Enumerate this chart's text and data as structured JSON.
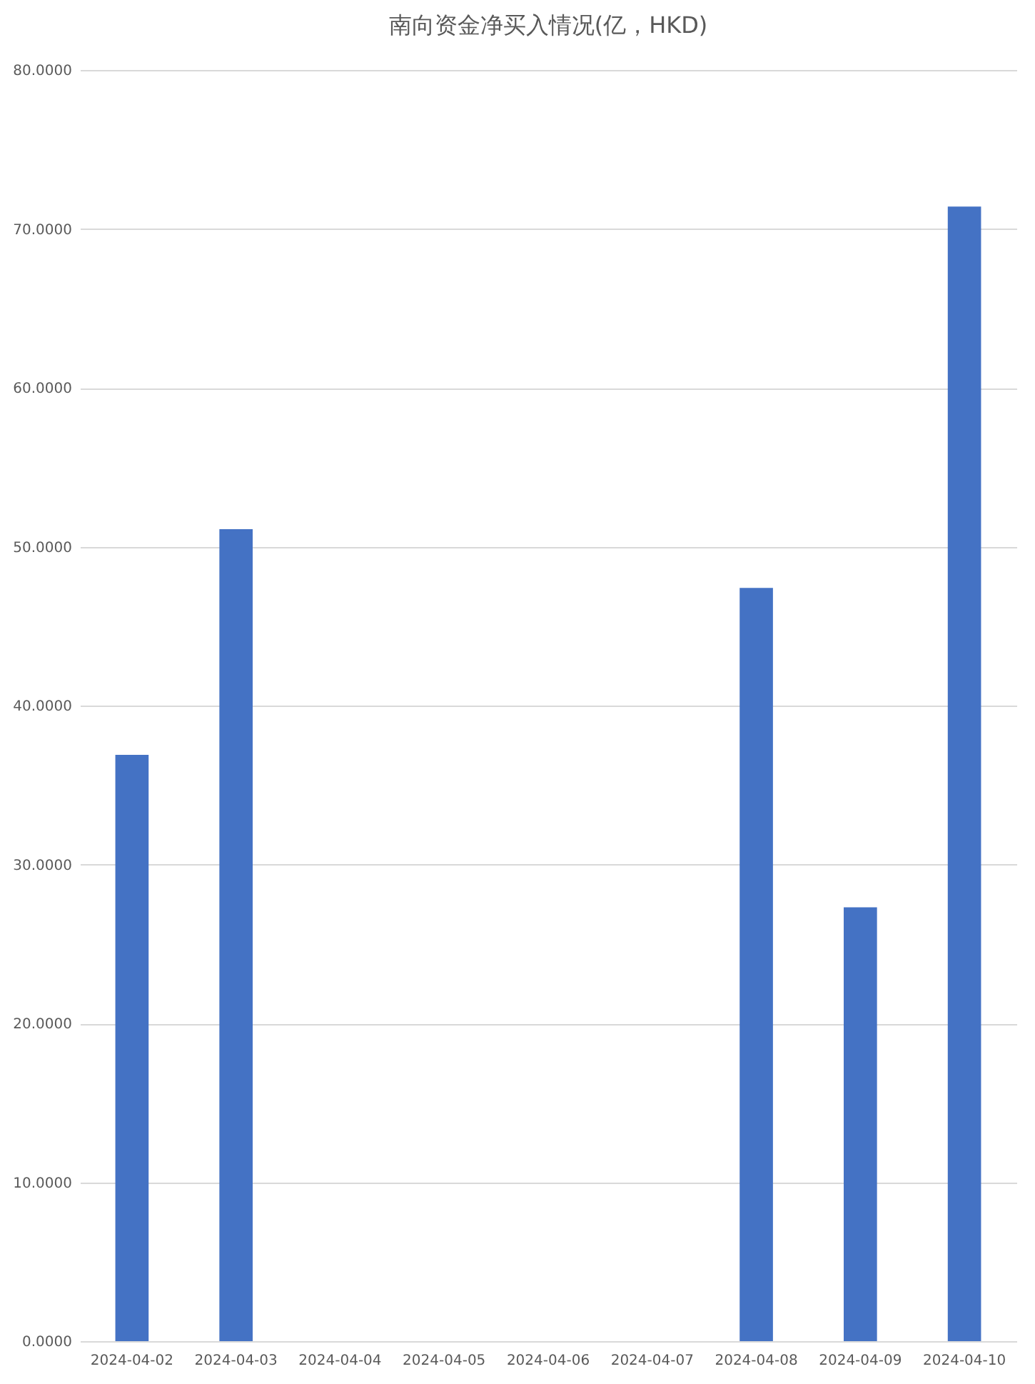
{
  "chart_data": {
    "type": "bar",
    "title": "南向资金净买入情况(亿，HKD)",
    "categories": [
      "2024-04-02",
      "2024-04-03",
      "2024-04-04",
      "2024-04-05",
      "2024-04-06",
      "2024-04-07",
      "2024-04-08",
      "2024-04-09",
      "2024-04-10"
    ],
    "values": [
      36.9,
      51.1,
      null,
      null,
      null,
      null,
      47.4,
      27.3,
      71.4
    ],
    "color": "#4472c4",
    "ylim": [
      0,
      80
    ],
    "yticks": [
      {
        "value": 0,
        "label": "0.0000"
      },
      {
        "value": 10,
        "label": "10.0000"
      },
      {
        "value": 20,
        "label": "20.0000"
      },
      {
        "value": 30,
        "label": "30.0000"
      },
      {
        "value": 40,
        "label": "40.0000"
      },
      {
        "value": 50,
        "label": "50.0000"
      },
      {
        "value": 60,
        "label": "60.0000"
      },
      {
        "value": 70,
        "label": "70.0000"
      },
      {
        "value": 80,
        "label": "80.0000"
      }
    ],
    "grid": "y"
  }
}
